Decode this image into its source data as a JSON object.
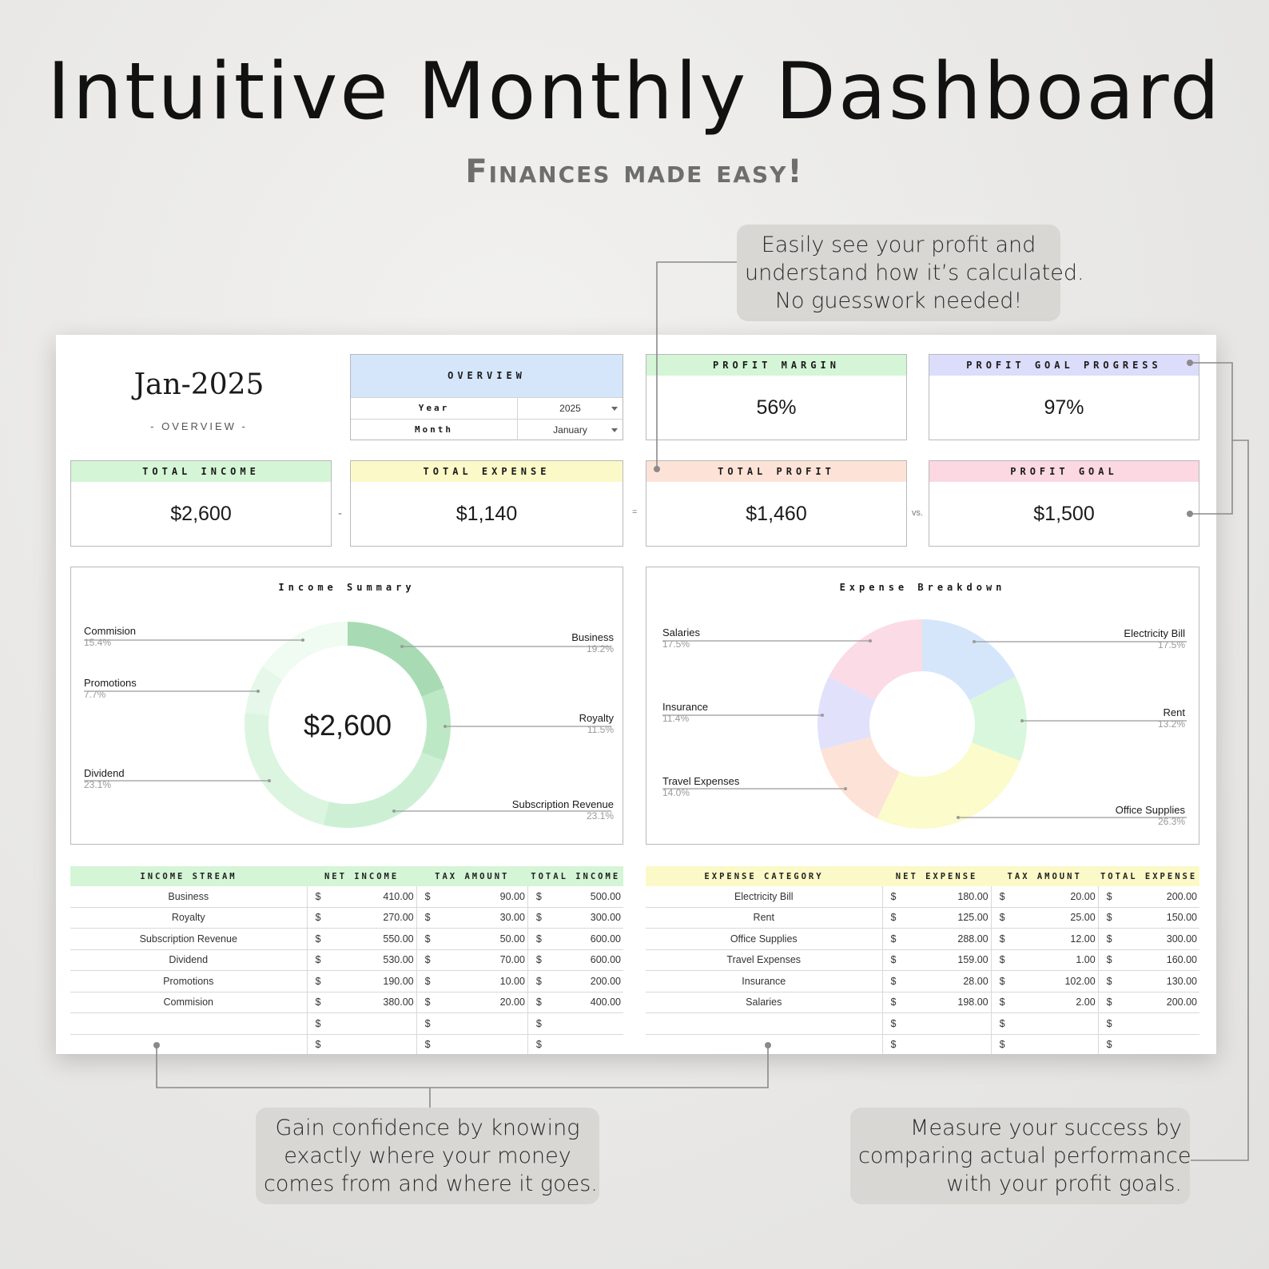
{
  "hero": {
    "title": "Intuitive Monthly Dashboard",
    "subtitle": "Finances made easy!"
  },
  "callouts": {
    "profit": [
      "Easily see your profit and",
      "understand how it’s calculated.",
      "No guesswork needed!"
    ],
    "money": [
      "Gain confidence by knowing",
      "exactly where your money",
      "comes from and where it goes."
    ],
    "goals": [
      "Measure your success by",
      "comparing actual performance",
      "with your profit goals."
    ]
  },
  "header": {
    "month_title": "Jan-2025",
    "month_sub": "- OVERVIEW -"
  },
  "overview": {
    "title": "Overview",
    "year_label": "Year",
    "year_value": "2025",
    "month_label": "Month",
    "month_value": "January"
  },
  "kpis": {
    "profit_margin_label": "Profit Margin",
    "profit_margin_value": "56%",
    "goal_progress_label": "Profit Goal Progress",
    "goal_progress_value": "97%",
    "total_income_label": "Total Income",
    "total_income_value": "$2,600",
    "total_expense_label": "Total Expense",
    "total_expense_value": "$1,140",
    "total_profit_label": "Total Profit",
    "total_profit_value": "$1,460",
    "profit_goal_label": "Profit Goal",
    "profit_goal_value": "$1,500",
    "op_minus": "-",
    "op_equals": "=",
    "op_vs": "vs."
  },
  "colors": {
    "green_head": "#d4f5d6",
    "yellow_head": "#fbf9c8",
    "peach_head": "#fde3d7",
    "pink_head": "#fbd8e2",
    "lavender_head": "#dcdcfb",
    "blue_head": "#d5e6fb"
  },
  "income_summary": {
    "title": "Income Summary",
    "center": "$2,600",
    "labels": [
      {
        "name": "Commision",
        "pct": "15.4%"
      },
      {
        "name": "Promotions",
        "pct": "7.7%"
      },
      {
        "name": "Dividend",
        "pct": "23.1%"
      },
      {
        "name": "Business",
        "pct": "19.2%"
      },
      {
        "name": "Royalty",
        "pct": "11.5%"
      },
      {
        "name": "Subscription Revenue",
        "pct": "23.1%"
      }
    ]
  },
  "expense_breakdown": {
    "title": "Expense Breakdown",
    "labels": [
      {
        "name": "Salaries",
        "pct": "17.5%"
      },
      {
        "name": "Insurance",
        "pct": "11.4%"
      },
      {
        "name": "Travel Expenses",
        "pct": "14.0%"
      },
      {
        "name": "Electricity Bill",
        "pct": "17.5%"
      },
      {
        "name": "Rent",
        "pct": "13.2%"
      },
      {
        "name": "Office Supplies",
        "pct": "26.3%"
      }
    ]
  },
  "chart_data": [
    {
      "type": "pie",
      "title": "Income Summary",
      "categories": [
        "Business",
        "Royalty",
        "Subscription Revenue",
        "Dividend",
        "Promotions",
        "Commision"
      ],
      "values": [
        19.2,
        11.5,
        23.1,
        23.1,
        7.7,
        15.4
      ],
      "colors": [
        "#a8dbb4",
        "#bde8c6",
        "#cdf0d4",
        "#dcf5e0",
        "#e6f8e9",
        "#f0fbf1"
      ],
      "center_text": "$2,600"
    },
    {
      "type": "pie",
      "title": "Expense Breakdown",
      "categories": [
        "Electricity Bill",
        "Rent",
        "Office Supplies",
        "Travel Expenses",
        "Insurance",
        "Salaries"
      ],
      "values": [
        17.5,
        13.2,
        26.3,
        14.0,
        11.4,
        17.5
      ],
      "colors": [
        "#d5e6fb",
        "#d8f7dc",
        "#fbfbcb",
        "#fde3d7",
        "#e1e1fc",
        "#fbdbe5"
      ]
    }
  ],
  "income_table": {
    "headers": [
      "Income Stream",
      "Net Income",
      "Tax Amount",
      "Total Income"
    ],
    "currency": "$",
    "rows": [
      {
        "name": "Business",
        "net": "410.00",
        "tax": "90.00",
        "total": "500.00"
      },
      {
        "name": "Royalty",
        "net": "270.00",
        "tax": "30.00",
        "total": "300.00"
      },
      {
        "name": "Subscription Revenue",
        "net": "550.00",
        "tax": "50.00",
        "total": "600.00"
      },
      {
        "name": "Dividend",
        "net": "530.00",
        "tax": "70.00",
        "total": "600.00"
      },
      {
        "name": "Promotions",
        "net": "190.00",
        "tax": "10.00",
        "total": "200.00"
      },
      {
        "name": "Commision",
        "net": "380.00",
        "tax": "20.00",
        "total": "400.00"
      },
      {
        "name": "",
        "net": "",
        "tax": "",
        "total": ""
      },
      {
        "name": "",
        "net": "",
        "tax": "",
        "total": ""
      }
    ]
  },
  "expense_table": {
    "headers": [
      "Expense Category",
      "Net Expense",
      "Tax Amount",
      "Total Expense"
    ],
    "currency": "$",
    "rows": [
      {
        "name": "Electricity Bill",
        "net": "180.00",
        "tax": "20.00",
        "total": "200.00"
      },
      {
        "name": "Rent",
        "net": "125.00",
        "tax": "25.00",
        "total": "150.00"
      },
      {
        "name": "Office Supplies",
        "net": "288.00",
        "tax": "12.00",
        "total": "300.00"
      },
      {
        "name": "Travel Expenses",
        "net": "159.00",
        "tax": "1.00",
        "total": "160.00"
      },
      {
        "name": "Insurance",
        "net": "28.00",
        "tax": "102.00",
        "total": "130.00"
      },
      {
        "name": "Salaries",
        "net": "198.00",
        "tax": "2.00",
        "total": "200.00"
      },
      {
        "name": "",
        "net": "",
        "tax": "",
        "total": ""
      },
      {
        "name": "",
        "net": "",
        "tax": "",
        "total": ""
      }
    ]
  }
}
